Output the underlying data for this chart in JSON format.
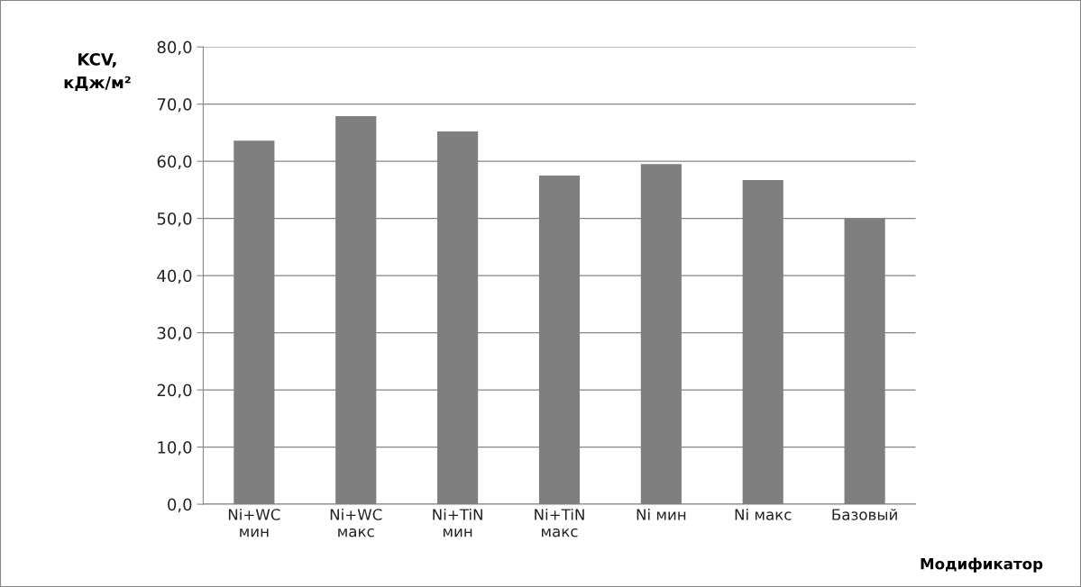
{
  "chart_data": {
    "type": "bar",
    "categories": [
      "Ni+WC\nмин",
      "Ni+WC\nмакс",
      "Ni+TiN\nмин",
      "Ni+TiN\nмакс",
      "Ni мин",
      "Ni макс",
      "Базовый"
    ],
    "values": [
      63.6,
      67.9,
      65.2,
      57.5,
      59.5,
      56.7,
      50.0
    ],
    "color": "#7f7f7f",
    "xlabel": "Модификатор",
    "ylabel": "KCV,\nкДж/м²",
    "ylim": [
      0,
      80
    ],
    "yticks": [
      {
        "value": 0,
        "label": "0,0"
      },
      {
        "value": 10,
        "label": "10,0"
      },
      {
        "value": 20,
        "label": "20,0"
      },
      {
        "value": 30,
        "label": "30,0"
      },
      {
        "value": 40,
        "label": "40,0"
      },
      {
        "value": 50,
        "label": "50,0"
      },
      {
        "value": 60,
        "label": "60,0"
      },
      {
        "value": 70,
        "label": "70,0"
      },
      {
        "value": 80,
        "label": "80,0"
      }
    ],
    "grid": "y"
  }
}
